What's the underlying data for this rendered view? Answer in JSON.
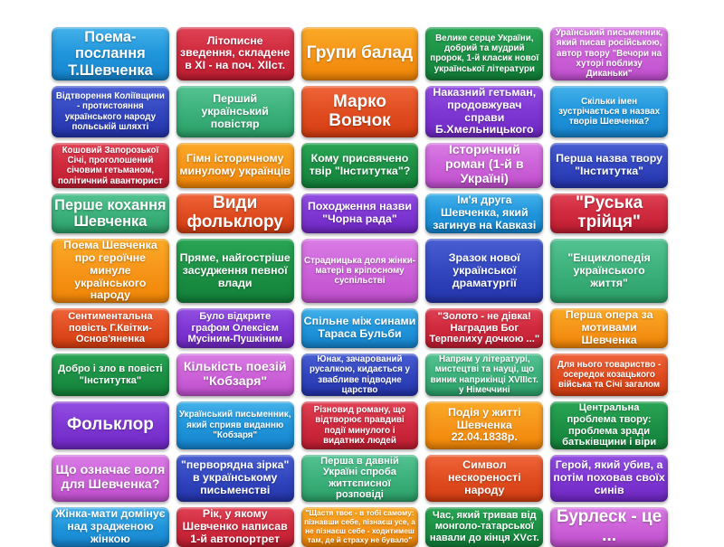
{
  "app": {
    "kind": "flip-tiles-quiz-board",
    "background": "#ffffff",
    "grid": {
      "columns": 5,
      "rows": 10
    }
  },
  "palette": {
    "lightblue": "#2196dc",
    "red": "#d02a3e",
    "orange": "#f6961a",
    "darkgreen": "#1d9246",
    "orchid": "#cd63d9",
    "darkblue": "#3347c0",
    "green": "#3db27c",
    "orangered": "#e14e22",
    "purple": "#8038d4"
  },
  "tiles": [
    {
      "text": "Поема-послання Т.Шевченка",
      "color": "lightblue",
      "size": "xl"
    },
    {
      "text": "Літописне зведення, складене в XI - на поч. XIIст.",
      "color": "red",
      "size": "md"
    },
    {
      "text": "Групи балад",
      "color": "orange",
      "size": "xxl"
    },
    {
      "text": "Велике серце України, добрий та мудрий пророк, 1-й класик нової української літератури",
      "color": "darkgreen",
      "size": "s"
    },
    {
      "text": "Ураїнський письменник, який писав російською, автор твору \"Вечори на хуторі поблизу Диканьки\"",
      "color": "orchid",
      "size": "s"
    },
    {
      "text": "Відтворення Коліївщини - протистояння українського народу польській шляхті",
      "color": "darkblue",
      "size": "s"
    },
    {
      "text": "Перший український повістяр",
      "color": "green",
      "size": "md"
    },
    {
      "text": "Марко Вовчок",
      "color": "orangered",
      "size": "xxl"
    },
    {
      "text": "Наказний гетьман, продовжувач справи Б.Хмельницького",
      "color": "purple",
      "size": "md"
    },
    {
      "text": "Скільки імен зустрічається в назвах творів Шевченка?",
      "color": "lightblue",
      "size": "s"
    },
    {
      "text": "Кошовий Запорозької Січі, проголошений січовим гетьманом, політичний авантюрист",
      "color": "red",
      "size": "s"
    },
    {
      "text": "Гімн історичному минулому українців",
      "color": "orange",
      "size": "md"
    },
    {
      "text": "Кому присвячено твір \"Інститутка\"?",
      "color": "darkgreen",
      "size": "md"
    },
    {
      "text": "Історичний роман (1-й в Україні)",
      "color": "orchid",
      "size": "lg"
    },
    {
      "text": "Перша назва твору \"Інститутка\"",
      "color": "darkblue",
      "size": "md"
    },
    {
      "text": "Перше кохання Шевченка",
      "color": "green",
      "size": "xl"
    },
    {
      "text": "Види фольклору",
      "color": "orangered",
      "size": "xxl"
    },
    {
      "text": "Походження назви \"Чорна рада\"",
      "color": "purple",
      "size": "md"
    },
    {
      "text": "Ім'я друга Шевченка, який загинув на Кавказі",
      "color": "lightblue",
      "size": "md"
    },
    {
      "text": "\"Руська трійця\"",
      "color": "red",
      "size": "xxl"
    },
    {
      "text": "Поема Шевченка про героїчне минуле українського народу",
      "color": "orange",
      "size": "md"
    },
    {
      "text": "Пряме, найгостріше засудження певної влади",
      "color": "darkgreen",
      "size": "md"
    },
    {
      "text": "Страдницька доля жінки-матері в кріпосному суспільстві",
      "color": "orchid",
      "size": "s"
    },
    {
      "text": "Зразок нової української драматургії",
      "color": "darkblue",
      "size": "md"
    },
    {
      "text": "\"Енциклопедія українського життя\"",
      "color": "green",
      "size": "md"
    },
    {
      "text": "Сентиментальна повість Г.Квітки-Основ'яненка",
      "color": "orangered",
      "size": "m"
    },
    {
      "text": "Було відкрите графом Олексієм Мусіним-Пушкіним",
      "color": "purple",
      "size": "m"
    },
    {
      "text": "Спільне між синами Тараса Бульби",
      "color": "lightblue",
      "size": "md"
    },
    {
      "text": "\"Золото - не дівка! Наградив Бог Терпелиху дочкою ...\"",
      "color": "red",
      "size": "m"
    },
    {
      "text": "Перша опера за мотивами Шевченка",
      "color": "orange",
      "size": "md"
    },
    {
      "text": "Добро і зло в повісті \"Інститутка\"",
      "color": "darkgreen",
      "size": "m"
    },
    {
      "text": "Кількість поезій \"Кобзаря\"",
      "color": "orchid",
      "size": "lg"
    },
    {
      "text": "Юнак, зачарований русалкою, кидається у звабливе підводне царство",
      "color": "darkblue",
      "size": "s"
    },
    {
      "text": "Напрям у літературі, мистецтві та науці, що виник наприкінці XVIIIст. у Німеччині",
      "color": "green",
      "size": "s"
    },
    {
      "text": "Для нього товариство - осередок козацького війська та Січі загалом",
      "color": "orangered",
      "size": "s"
    },
    {
      "text": "Фольклор",
      "color": "purple",
      "size": "xxl"
    },
    {
      "text": "Український письменник, який сприяв виданню \"Кобзаря\"",
      "color": "lightblue",
      "size": "s"
    },
    {
      "text": "Різновид роману, що відтворює правдиві події минулого і видатних людей",
      "color": "red",
      "size": "s"
    },
    {
      "text": "Подія у житті Шевченка 22.04.1838р.",
      "color": "orange",
      "size": "md"
    },
    {
      "text": "Центральна проблема твору: проблема зради батьківщини і віри",
      "color": "darkgreen",
      "size": "m"
    },
    {
      "text": "Що означає воля для Шевченка?",
      "color": "orchid",
      "size": "lg"
    },
    {
      "text": "\"перворядна зірка\" в українському письменстві",
      "color": "darkblue",
      "size": "md"
    },
    {
      "text": "Перша в давній Україні спроба життєписної розповіді",
      "color": "green",
      "size": "m"
    },
    {
      "text": "Символ нескореності народу",
      "color": "orangered",
      "size": "md"
    },
    {
      "text": "Герой, який убив, а потім поховав своїх синів",
      "color": "purple",
      "size": "md"
    },
    {
      "text": "Жінка-мати домінує над зрадженою жінкою",
      "color": "lightblue",
      "size": "md"
    },
    {
      "text": "Рік, у якому Шевченко написав 1-й автопортрет",
      "color": "red",
      "size": "md"
    },
    {
      "text": "\"Щастя твоє - в тобі самому: пізнавши себе, пізнаєш усе, а не пізнаєш себе - ходитимеш там, де й страху не бувало\"",
      "color": "orange",
      "size": "xs"
    },
    {
      "text": "Час, який тривав від монголо-татарської навали до кінця XVст.",
      "color": "darkgreen",
      "size": "m"
    },
    {
      "text": "Бурлеск - це ...",
      "color": "orchid",
      "size": "xxl"
    }
  ]
}
